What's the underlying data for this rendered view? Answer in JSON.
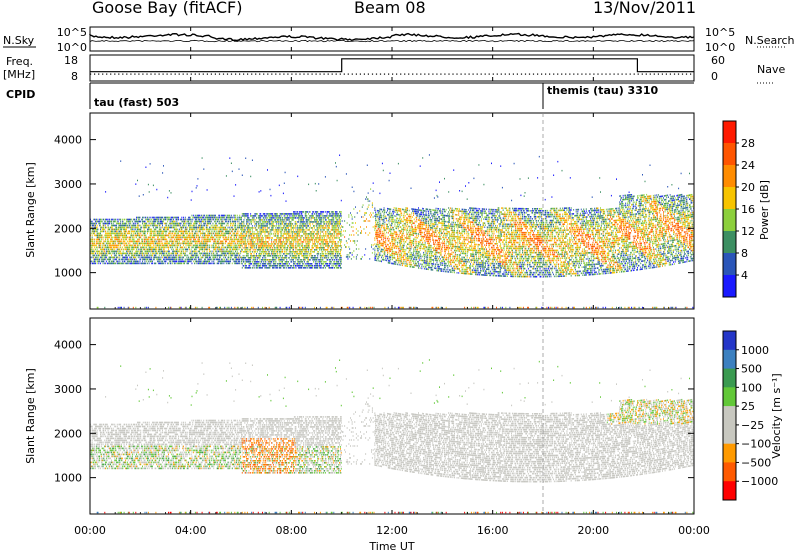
{
  "header": {
    "station": "Goose Bay (fitACF)",
    "beam": "Beam 08",
    "date": "13/Nov/2011"
  },
  "noise_panel": {
    "left_label": "N.Sky",
    "right_label": "N.Search",
    "left_ticks": [
      "10^5",
      "10^0"
    ],
    "right_ticks": [
      "10^5",
      "10^0"
    ]
  },
  "freq_panel": {
    "left_label_1": "Freq.",
    "left_label_2": "[MHz]",
    "right_label": "Nave",
    "left_ticks": [
      "18",
      "8"
    ],
    "right_ticks": [
      "60",
      "0"
    ],
    "nave_steps": [
      {
        "start": 0,
        "end": 10,
        "value": 20
      },
      {
        "start": 10,
        "end": 21.75,
        "value": 55
      },
      {
        "start": 21.75,
        "end": 24,
        "value": 20
      }
    ]
  },
  "cpid": {
    "label": "CPID",
    "modes": [
      {
        "name": "tau (fast) 503",
        "start_hour": 0
      },
      {
        "name": "themis (tau) 3310",
        "start_hour": 18
      }
    ]
  },
  "power_panel": {
    "ylabel": "Slant Range [km]",
    "y_ticks": [
      "4000",
      "3000",
      "2000",
      "1000"
    ],
    "y_tick_values": [
      4000,
      3000,
      2000,
      1000
    ],
    "colorbar_label": "Power [dB]",
    "colorbar_ticks": [
      "28",
      "24",
      "20",
      "16",
      "12",
      "8",
      "4"
    ],
    "colorbar_colors": [
      "#ff1a00",
      "#ff5500",
      "#ff8c00",
      "#f7c400",
      "#8ccf3c",
      "#3c8f62",
      "#2a55b8",
      "#1a1aff"
    ]
  },
  "velocity_panel": {
    "ylabel": "Slant Range [km]",
    "y_ticks": [
      "4000",
      "3000",
      "2000",
      "1000"
    ],
    "y_tick_values": [
      4000,
      3000,
      2000,
      1000
    ],
    "colorbar_label": "Velocity [m s⁻¹]",
    "colorbar_ticks": [
      "1000",
      "500",
      "100",
      "25",
      "−25",
      "−100",
      "−500",
      "−1000"
    ],
    "colorbar_colors": [
      "#2436c8",
      "#3c80c0",
      "#3a9a50",
      "#62c838",
      "#c8c8c0",
      "#c8c8c0",
      "#ff9a00",
      "#ff5a00",
      "#ff0000"
    ]
  },
  "x_axis": {
    "label": "Time UT",
    "ticks": [
      "00:00",
      "04:00",
      "08:00",
      "12:00",
      "16:00",
      "20:00",
      "00:00"
    ],
    "tick_hours": [
      0,
      4,
      8,
      12,
      16,
      20,
      24
    ]
  },
  "chart_data": {
    "type": "heatmap",
    "title": "Goose Bay (fitACF)   Beam 08   13/Nov/2011",
    "xlabel": "Time UT",
    "ylabel": "Slant Range [km]",
    "xlim_hours": [
      0,
      24
    ],
    "ylim_km": [
      180,
      4600
    ],
    "panels": [
      "Power [dB]",
      "Velocity [m s⁻¹]"
    ],
    "power_scale": [
      4,
      8,
      12,
      16,
      20,
      24,
      28
    ],
    "velocity_scale": [
      -1000,
      -500,
      -100,
      -25,
      25,
      100,
      500,
      1000
    ]
  }
}
